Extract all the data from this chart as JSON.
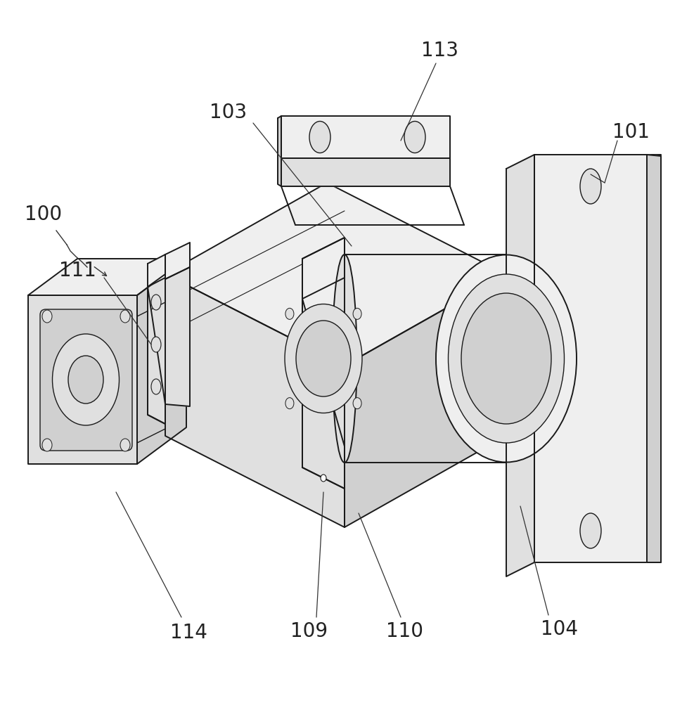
{
  "bg_color": "#ffffff",
  "line_color": "#1a1a1a",
  "label_fontsize": 20,
  "figsize": [
    9.6,
    10.0
  ],
  "dpi": 100,
  "face_light": "#efefef",
  "face_mid": "#e0e0e0",
  "face_dark": "#d0d0d0",
  "face_darker": "#c0c0c0"
}
